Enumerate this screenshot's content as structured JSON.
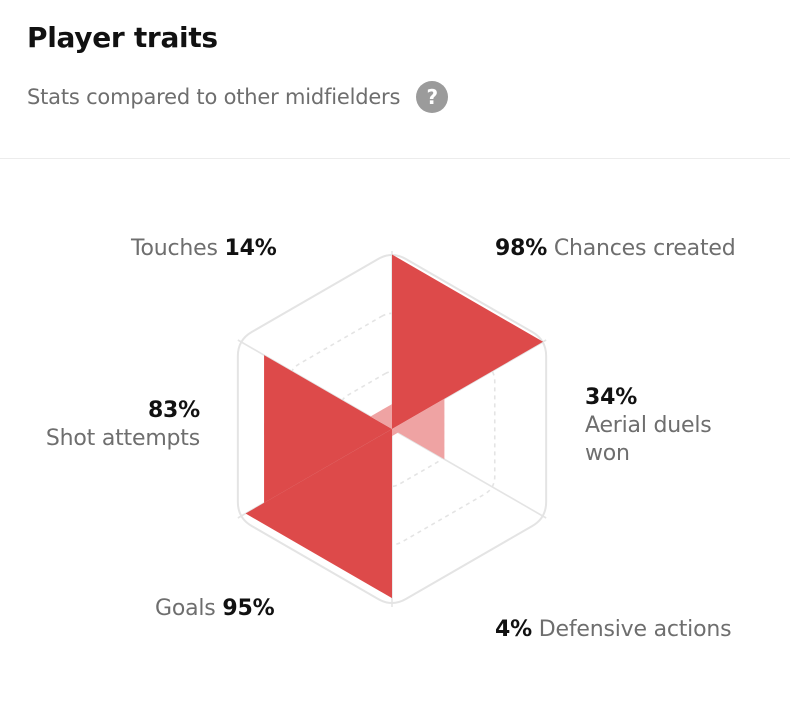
{
  "header": {
    "title": "Player traits",
    "subtitle": "Stats compared to other midfielders",
    "help_icon": "question-icon"
  },
  "colors": {
    "fill_high": "#dd4a4a",
    "fill_low": "#efa3a3",
    "grid": "#e4e4e4"
  },
  "chart_data": {
    "type": "radar",
    "title": "",
    "range": [
      0,
      100
    ],
    "low_threshold": 50,
    "axes": [
      {
        "label": "Chances created",
        "value": 98,
        "display": "98%"
      },
      {
        "label": "Aerial duels won",
        "label_lines": [
          "Aerial duels",
          "won"
        ],
        "value": 34,
        "display": "34%"
      },
      {
        "label": "Defensive actions",
        "value": 4,
        "display": "4%"
      },
      {
        "label": "Goals",
        "value": 95,
        "display": "95%"
      },
      {
        "label": "Shot attempts",
        "value": 83,
        "display": "83%"
      },
      {
        "label": "Touches",
        "value": 14,
        "display": "14%"
      }
    ]
  }
}
